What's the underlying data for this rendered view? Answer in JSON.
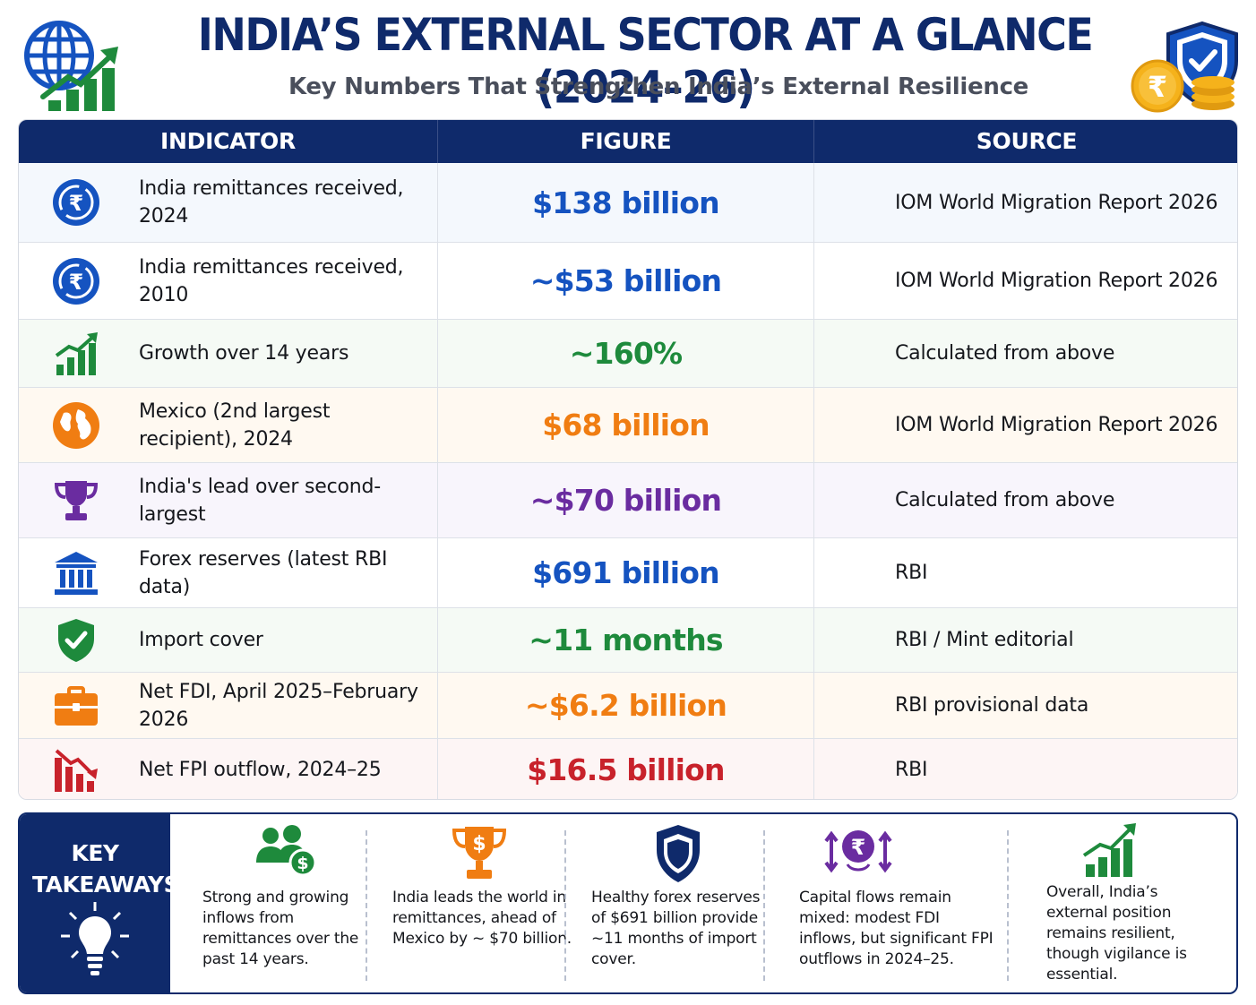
{
  "header": {
    "title": "INDIA’S EXTERNAL SECTOR AT A GLANCE (2024–26)",
    "subtitle": "Key Numbers That Strengthen India’s External Resilience",
    "left_logo_icon": "globe-growth-chart-icon",
    "right_logo_icon": "shield-check-rupee-coins-icon",
    "rupee_symbol": "₹"
  },
  "table": {
    "headers": [
      "INDICATOR",
      "FIGURE",
      "SOURCE"
    ],
    "rows": [
      {
        "icon": "rupee-exchange-icon",
        "indicator": "India remittances received, 2024",
        "figure": "$138 billion",
        "source": "IOM World Migration Report 2026",
        "color": "#1553c0"
      },
      {
        "icon": "rupee-exchange-icon",
        "indicator": "India remittances received, 2010",
        "figure": "~$53 billion",
        "source": "IOM World Migration Report 2026",
        "color": "#1553c0"
      },
      {
        "icon": "growth-bar-chart-icon",
        "indicator": "Growth over 14 years",
        "figure": "~160%",
        "source": "Calculated from above",
        "color": "#1e8a3c"
      },
      {
        "icon": "globe-icon",
        "indicator": "Mexico (2nd largest recipient), 2024",
        "figure": "$68 billion",
        "source": "IOM World Migration Report 2026",
        "color": "#f07d12"
      },
      {
        "icon": "trophy-icon",
        "indicator": "India's lead over second-largest",
        "figure": "~$70 billion",
        "source": "Calculated from above",
        "color": "#6a2ca0"
      },
      {
        "icon": "bank-icon",
        "indicator": "Forex reserves (latest RBI data)",
        "figure": "$691 billion",
        "source": "RBI",
        "color": "#1553c0"
      },
      {
        "icon": "shield-check-icon",
        "indicator": "Import cover",
        "figure": "~11 months",
        "source": "RBI / Mint editorial",
        "color": "#1e8a3c"
      },
      {
        "icon": "briefcase-icon",
        "indicator": "Net FDI, April 2025–February 2026",
        "figure": "~$6.2 billion",
        "source": "RBI provisional data",
        "color": "#f07d12"
      },
      {
        "icon": "declining-bar-chart-icon",
        "indicator": "Net FPI outflow, 2024–25",
        "figure": "$16.5 billion",
        "source": "RBI",
        "color": "#c8222b"
      }
    ]
  },
  "takeaways": {
    "title": "KEY TAKEAWAYS",
    "bulb_icon": "lightbulb-icon",
    "items": [
      {
        "icon": "people-dollar-icon",
        "text": "Strong and growing inflows from remittances over the past 14 years."
      },
      {
        "icon": "trophy-dollar-icon",
        "text": "India leads the world in remittances, ahead of Mexico by ~ $70 billion."
      },
      {
        "icon": "shield-icon",
        "text": "Healthy forex reserves of $691 billion provide ~11 months of import cover."
      },
      {
        "icon": "rupee-flows-icon",
        "text": "Capital flows remain mixed: modest FDI inflows, but significant FPI outflows in 2024–25."
      },
      {
        "icon": "growth-chart-icon",
        "text": "Overall, India’s external position remains resilient, though vigilance is essential."
      }
    ]
  },
  "colors": {
    "navy": "#0f2a6b",
    "blue": "#1553c0",
    "green": "#1e8a3c",
    "orange": "#f07d12",
    "purple": "#6a2ca0",
    "red": "#c8222b",
    "gold": "#f5b21b"
  }
}
